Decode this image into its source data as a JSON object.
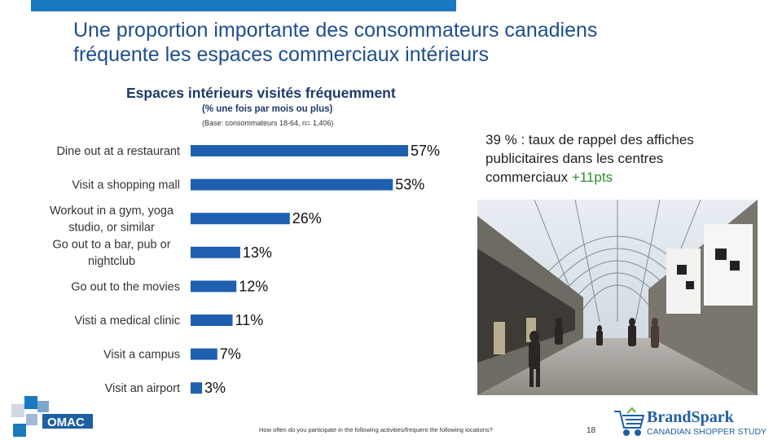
{
  "slide": {
    "title_line1": "Une proportion importante des consommateurs canadiens",
    "title_line2": "fréquente les espaces commerciaux intérieurs",
    "callout_text": "39 % : taux de rappel des affiches publicitaires dans les centres commerciaux ",
    "callout_accent": "+11pts",
    "footnote": "How often do you participate in the following activities/frequent the following locations?",
    "page_number": "18"
  },
  "chart_data": {
    "type": "bar",
    "orientation": "horizontal",
    "title": "Espaces intérieurs visités fréquemment",
    "subtitle": "(% une fois par mois ou plus)",
    "base_note": "(Base: consommateurs 18-64, n= 1,406)",
    "categories": [
      [
        "Dine out at a restaurant"
      ],
      [
        "Visit a shopping mall"
      ],
      [
        "Workout in a gym, yoga",
        "studio, or similar"
      ],
      [
        "Go out to a bar, pub or",
        "nightclub"
      ],
      [
        "Go out to the movies"
      ],
      [
        "Visti a medical clinic"
      ],
      [
        "Visit a campus"
      ],
      [
        "Visit an airport"
      ]
    ],
    "values": [
      57,
      53,
      26,
      13,
      12,
      11,
      7,
      3
    ],
    "value_labels": [
      "57%",
      "53%",
      "26%",
      "13%",
      "12%",
      "11%",
      "7%",
      "3%"
    ],
    "xlim": [
      0,
      57
    ],
    "grid": false,
    "bar_color": "#1f5fb0"
  },
  "logos": {
    "omac": "OMAC",
    "brandspark_name": "BrandSpark",
    "brandspark_tagline": "CANADIAN SHOPPER STUDY"
  },
  "icons": {
    "cart": "shopping-cart-icon"
  }
}
